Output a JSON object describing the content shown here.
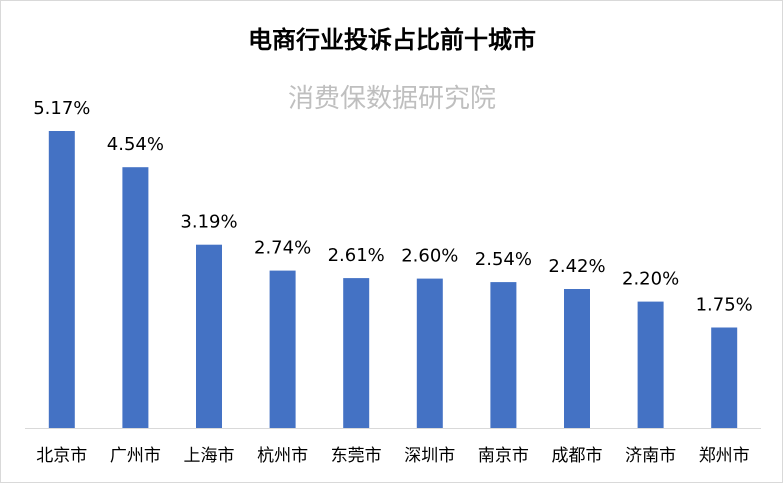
{
  "chart_data": {
    "type": "bar",
    "title": "电商行业投诉占比前十城市",
    "subtitle": "消费保数据研究院",
    "categories": [
      "北京市",
      "广州市",
      "上海市",
      "杭州市",
      "东莞市",
      "深圳市",
      "南京市",
      "成都市",
      "济南市",
      "郑州市"
    ],
    "values": [
      5.17,
      4.54,
      3.19,
      2.74,
      2.61,
      2.6,
      2.54,
      2.42,
      2.2,
      1.75
    ],
    "data_labels": [
      "5.17%",
      "4.54%",
      "3.19%",
      "2.74%",
      "2.61%",
      "2.60%",
      "2.54%",
      "2.42%",
      "2.20%",
      "1.75%"
    ],
    "xlabel": "",
    "ylabel": "",
    "unit": "%",
    "ylim": [
      0,
      5.17
    ],
    "grid": false,
    "legend": "none",
    "bar_color": "#4472c4"
  }
}
